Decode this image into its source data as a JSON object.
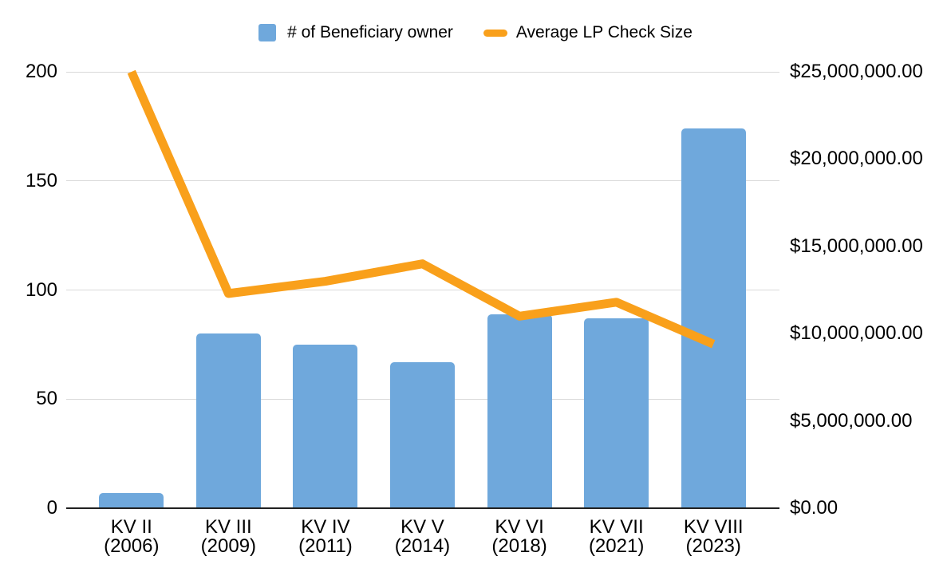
{
  "background_color": "#FFFFFF",
  "chart_data": {
    "type": "combo_bar_line",
    "title": "",
    "grid": true,
    "grid_color": "#D9D9D9",
    "axis_color": "#212121",
    "legend_position": "top-center",
    "categories": [
      {
        "fund": "KV II",
        "year": "(2006)"
      },
      {
        "fund": "KV III",
        "year": "(2009)"
      },
      {
        "fund": "KV IV",
        "year": "(2011)"
      },
      {
        "fund": "KV V",
        "year": "(2014)"
      },
      {
        "fund": "KV VI",
        "year": "(2018)"
      },
      {
        "fund": "KV VII",
        "year": "(2021)"
      },
      {
        "fund": "KV VIII",
        "year": "(2023)"
      }
    ],
    "series": [
      {
        "name": "# of Beneficiary owner",
        "type": "bar",
        "axis": "left",
        "color": "#6FA8DC",
        "values": [
          7,
          80,
          75,
          67,
          89,
          87,
          174
        ]
      },
      {
        "name": "Average LP Check Size",
        "type": "line",
        "axis": "right",
        "color": "#F9A01B",
        "values": [
          25000000,
          12300000,
          13000000,
          14000000,
          11000000,
          11800000,
          9400000
        ]
      }
    ],
    "left_axis": {
      "min": 0,
      "max": 200,
      "ticks": [
        0,
        50,
        100,
        150,
        200
      ],
      "tick_labels": [
        "0",
        "50",
        "100",
        "150",
        "200"
      ]
    },
    "right_axis": {
      "min": 0,
      "max": 25000000,
      "tick_labels": [
        "$0.00",
        "$5,000,000.00",
        "$10,000,000.00",
        "$15,000,000.00",
        "$20,000,000.00",
        "$25,000,000.00"
      ]
    }
  }
}
